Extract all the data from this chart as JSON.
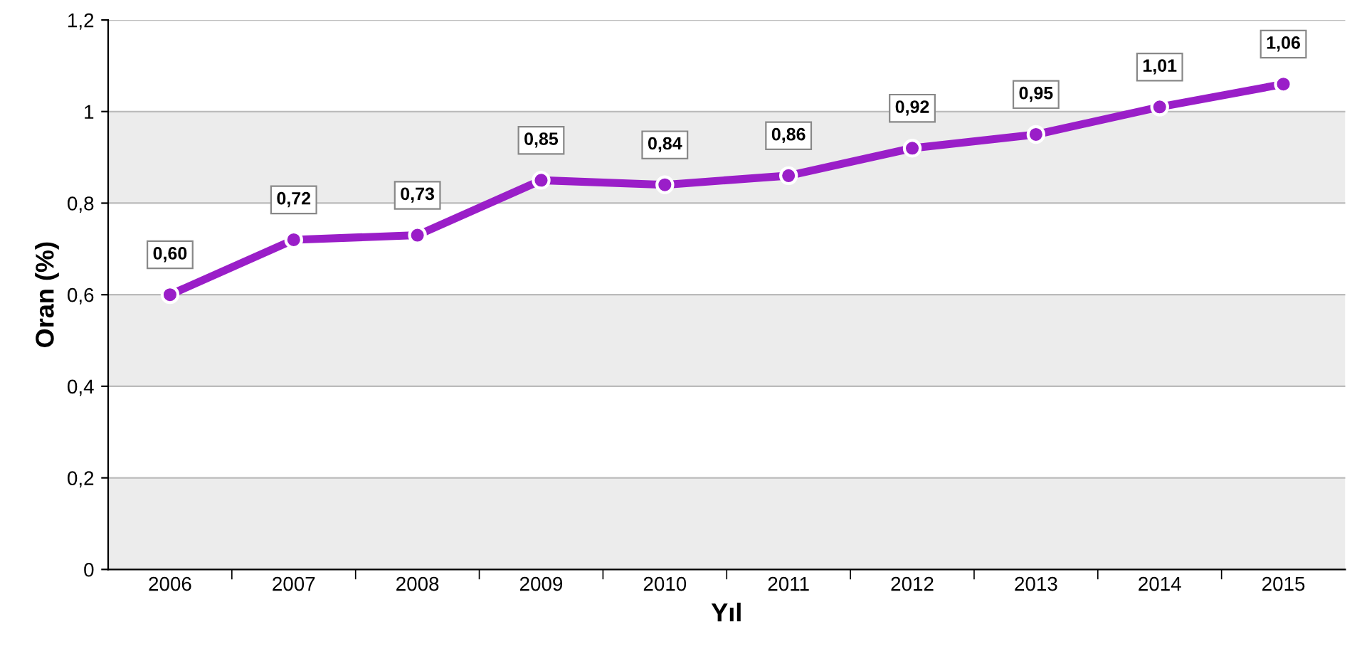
{
  "chart_data": {
    "type": "line",
    "xlabel": "Yıl",
    "ylabel": "Oran (%)",
    "categories": [
      "2006",
      "2007",
      "2008",
      "2009",
      "2010",
      "2011",
      "2012",
      "2013",
      "2014",
      "2015"
    ],
    "series": [
      {
        "color": "#9a1ec8",
        "values": [
          0.6,
          0.72,
          0.73,
          0.85,
          0.84,
          0.86,
          0.92,
          0.95,
          1.01,
          1.06
        ],
        "value_labels": [
          "0,60",
          "0,72",
          "0,73",
          "0,85",
          "0,84",
          "0,86",
          "0,92",
          "0,95",
          "1,01",
          "1,06"
        ]
      }
    ],
    "ylim": [
      0,
      1.2
    ],
    "yticks": [
      {
        "value": 0,
        "label": "0"
      },
      {
        "value": 0.2,
        "label": "0,2"
      },
      {
        "value": 0.4,
        "label": "0,4"
      },
      {
        "value": 0.6,
        "label": "0,6"
      },
      {
        "value": 0.8,
        "label": "0,8"
      },
      {
        "value": 1,
        "label": "1"
      },
      {
        "value": 1.2,
        "label": "1,2"
      }
    ],
    "bands": [
      {
        "axis": "y",
        "from": 0,
        "to": 0.2,
        "color": "#ececec"
      },
      {
        "axis": "y",
        "from": 0.4,
        "to": 0.6,
        "color": "#ececec"
      },
      {
        "axis": "y",
        "from": 0.8,
        "to": 1.0,
        "color": "#ececec"
      }
    ],
    "grid": "y",
    "marker": "circle",
    "line_style": "solid",
    "legend": false
  }
}
